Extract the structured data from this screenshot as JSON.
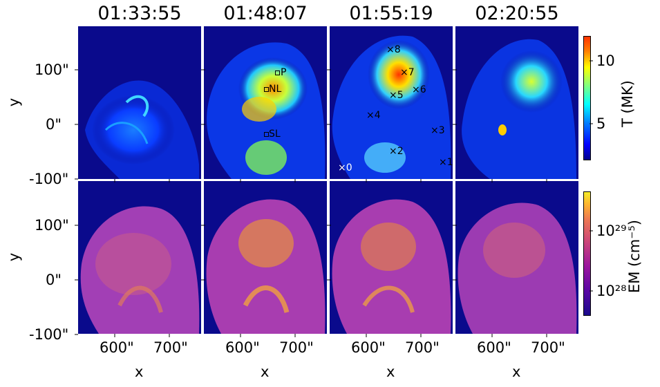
{
  "panels": {
    "titles": [
      "01:33:55",
      "01:48:07",
      "01:55:19",
      "02:20:55"
    ]
  },
  "axes": {
    "y_ticks": [
      "100\"",
      "0\"",
      "-100\""
    ],
    "x_ticks": [
      "600\"",
      "700\""
    ],
    "xlabel": "x",
    "ylabel": "y"
  },
  "colorbars": {
    "temperature": {
      "label": "T (MK)",
      "ticks": [
        "10",
        "5"
      ],
      "colormap": "jet",
      "min_color": "#00008f",
      "max_color": "#ff3300"
    },
    "emission": {
      "label": "EM (cm⁻⁵)",
      "ticks": [
        "10²⁹",
        "10²⁸"
      ],
      "colormap": "plasma",
      "min_color": "#1a0a8c",
      "max_color": "#f5ec2a"
    }
  },
  "annotations": {
    "loops": [
      "P",
      "NL",
      "SL"
    ],
    "points": [
      "×8",
      "×7",
      "×5",
      "×6",
      "×4",
      "×3",
      "×2",
      "×1",
      "×0"
    ]
  },
  "colors": {
    "background": "#0a0a8c"
  }
}
